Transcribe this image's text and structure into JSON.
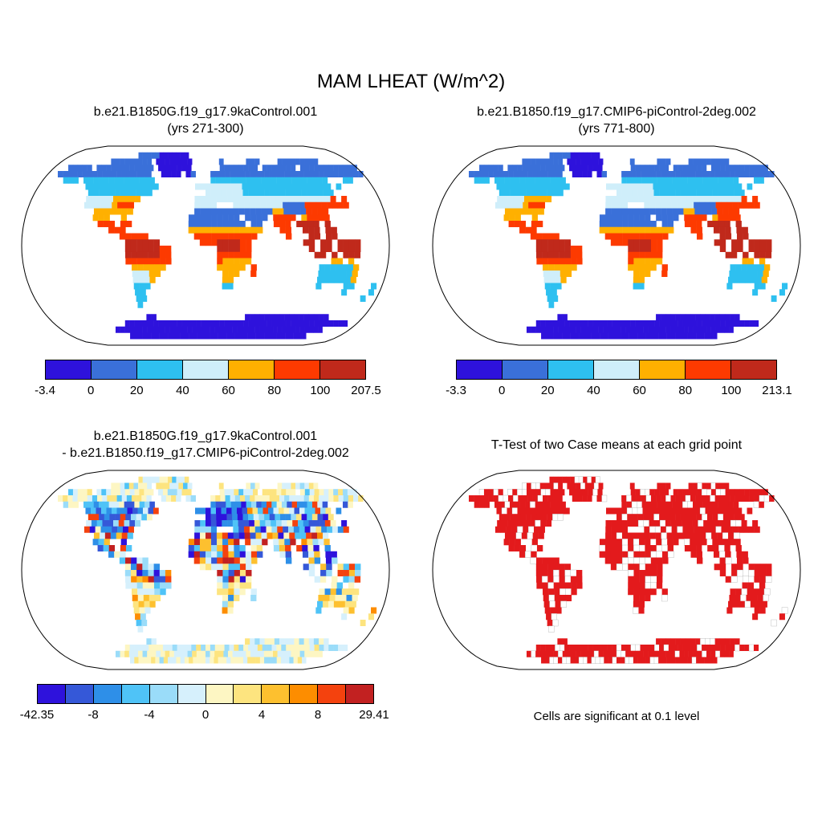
{
  "figure": {
    "title": "MAM LHEAT (W/m^2)",
    "background": "#ffffff"
  },
  "colors": {
    "palette7": [
      "#2e12dc",
      "#3a70d9",
      "#2ec0f0",
      "#cfeefa",
      "#ffb000",
      "#fd3a00",
      "#c0291b"
    ],
    "palette12": [
      "#2e12dc",
      "#3558d8",
      "#2e8fe8",
      "#4fc3f7",
      "#9adcf9",
      "#d6f0fc",
      "#fdf6c3",
      "#fde47f",
      "#fdc02f",
      "#fd8d00",
      "#f4420e",
      "#c22121"
    ]
  },
  "panels": [
    {
      "id": "case1",
      "title_lines": [
        "b.e21.B1850G.f19_g17.9kaControl.001",
        "(yrs 271-300)"
      ],
      "fill_mode": "climatology",
      "colorbar": {
        "colors": [
          "#2e12dc",
          "#3a70d9",
          "#2ec0f0",
          "#cfeefa",
          "#ffb000",
          "#fd3a00",
          "#c0291b"
        ],
        "ticks": [
          {
            "label": "-3.4",
            "pos": 0
          },
          {
            "label": "0",
            "pos": 0.1429
          },
          {
            "label": "20",
            "pos": 0.2857
          },
          {
            "label": "40",
            "pos": 0.4286
          },
          {
            "label": "60",
            "pos": 0.5714
          },
          {
            "label": "80",
            "pos": 0.7143
          },
          {
            "label": "100",
            "pos": 0.8571
          },
          {
            "label": "207.5",
            "pos": 1
          }
        ]
      }
    },
    {
      "id": "case2",
      "title_lines": [
        "b.e21.B1850.f19_g17.CMIP6-piControl-2deg.002",
        "(yrs 771-800)"
      ],
      "fill_mode": "climatology",
      "colorbar": {
        "colors": [
          "#2e12dc",
          "#3a70d9",
          "#2ec0f0",
          "#cfeefa",
          "#ffb000",
          "#fd3a00",
          "#c0291b"
        ],
        "ticks": [
          {
            "label": "-3.3",
            "pos": 0
          },
          {
            "label": "0",
            "pos": 0.1429
          },
          {
            "label": "20",
            "pos": 0.2857
          },
          {
            "label": "40",
            "pos": 0.4286
          },
          {
            "label": "60",
            "pos": 0.5714
          },
          {
            "label": "80",
            "pos": 0.7143
          },
          {
            "label": "100",
            "pos": 0.8571
          },
          {
            "label": "213.1",
            "pos": 1
          }
        ]
      }
    },
    {
      "id": "difference",
      "title_lines": [
        "b.e21.B1850G.f19_g17.9kaControl.001",
        "- b.e21.B1850.f19_g17.CMIP6-piControl-2deg.002"
      ],
      "fill_mode": "diff",
      "colorbar": {
        "colors": [
          "#2e12dc",
          "#3558d8",
          "#2e8fe8",
          "#4fc3f7",
          "#9adcf9",
          "#d6f0fc",
          "#fdf6c3",
          "#fde47f",
          "#fdc02f",
          "#fd8d00",
          "#f4420e",
          "#c22121"
        ],
        "ticks": [
          {
            "label": "-42.35",
            "pos": 0
          },
          {
            "label": "-8",
            "pos": 0.1667
          },
          {
            "label": "-4",
            "pos": 0.3333
          },
          {
            "label": "0",
            "pos": 0.5
          },
          {
            "label": "4",
            "pos": 0.6667
          },
          {
            "label": "8",
            "pos": 0.8333
          },
          {
            "label": "29.41",
            "pos": 1
          }
        ]
      }
    },
    {
      "id": "ttest",
      "title_lines": [
        "T-Test of two Case means at each grid point"
      ],
      "fill_mode": "ttest",
      "caption": "Cells are significant at 0.1 level"
    }
  ],
  "ttest": {
    "significant_color": "#e31a1c",
    "significant_pct": 78
  },
  "map": {
    "grid": {
      "cols": 64,
      "rows": 32
    },
    "land_mask": [
      "................................................................",
      "................############....................................",
      "...........#########.########......#.....###....#########.......",
      "...#####.############.#######......########.#######.############",
      "..###################..####.##...###############################",
      "....###.##############...........#######################...##...",
      ".........##############.......##########################.#......",
      "..........############..........########################........",
      "..........##########..........##########################.#......",
      "..........#########...........####...#####################......",
      "............#######...........########################..........",
      "............###..#...........#########.####.####.#####..........",
      ".............###.##..........##########.##..###.####.#..........",
      "...............###...........#############...##..###.##.........",
      ".................#####........###########.....#...##.##.........",
      "..................######.......#########.........##.##.####.....",
      "..................########........######..........#.##.####.....",
      "..................########........######...........##.#.###.....",
      "..................########........######..............##.#......",
      "...................######.........#####.#...........#######.....",
      "...................#####...........###..#...........#######.....",
      "...................####............##...............#######.....",
      "...................###.............##...............#....##...#.",
      "...................##....................................#....#.",
      "...................##........................................#..",
      "...................#............................................",
      "................................................................",
      "....................##..................#################.......",
      "...............###############################################..",
      "............##############################################......",
      "..............##########################################........",
      "................................................................"
    ]
  },
  "climo_rules": [
    {
      "r": [
        0,
        2
      ],
      "c": [
        0,
        63
      ],
      "k": 1
    },
    {
      "r": [
        3,
        4
      ],
      "c": [
        0,
        63
      ],
      "k": 1
    },
    {
      "r": [
        5,
        7
      ],
      "c": [
        0,
        63
      ],
      "k": 2
    },
    {
      "r": [
        8,
        9
      ],
      "c": [
        0,
        63
      ],
      "k": 3
    },
    {
      "r": [
        10,
        11
      ],
      "c": [
        0,
        63
      ],
      "k": 4
    },
    {
      "r": [
        12,
        18
      ],
      "c": [
        0,
        63
      ],
      "k": 5
    },
    {
      "r": [
        19,
        21
      ],
      "c": [
        0,
        63
      ],
      "k": 4
    },
    {
      "r": [
        22,
        26
      ],
      "c": [
        0,
        63
      ],
      "k": 2
    },
    {
      "r": [
        27,
        31
      ],
      "c": [
        0,
        63
      ],
      "k": 0
    },
    {
      "r": [
        1,
        4
      ],
      "c": [
        21,
        28
      ],
      "k": 0
    },
    {
      "r": [
        6,
        8
      ],
      "c": [
        30,
        38
      ],
      "k": 3
    },
    {
      "r": [
        8,
        9
      ],
      "c": [
        15,
        19
      ],
      "k": 4
    },
    {
      "r": [
        9,
        9
      ],
      "c": [
        16,
        18
      ],
      "k": 5
    },
    {
      "r": [
        8,
        9
      ],
      "c": [
        55,
        57
      ],
      "k": 5
    },
    {
      "r": [
        9,
        11
      ],
      "c": [
        50,
        55
      ],
      "k": 5
    },
    {
      "r": [
        10,
        12
      ],
      "c": [
        29,
        43
      ],
      "k": 1
    },
    {
      "r": [
        9,
        10
      ],
      "c": [
        46,
        49
      ],
      "k": 1
    },
    {
      "r": [
        11,
        13
      ],
      "c": [
        44,
        47
      ],
      "k": 5
    },
    {
      "r": [
        12,
        17
      ],
      "c": [
        48,
        59
      ],
      "k": 6
    },
    {
      "r": [
        12,
        14
      ],
      "c": [
        13,
        18
      ],
      "k": 5
    },
    {
      "r": [
        13,
        13
      ],
      "c": [
        29,
        41
      ],
      "k": 4
    },
    {
      "r": [
        14,
        17
      ],
      "c": [
        33,
        39
      ],
      "k": 5
    },
    {
      "r": [
        15,
        16
      ],
      "c": [
        34,
        37
      ],
      "k": 6
    },
    {
      "r": [
        15,
        17
      ],
      "c": [
        18,
        23
      ],
      "k": 6
    },
    {
      "r": [
        18,
        18
      ],
      "c": [
        18,
        25
      ],
      "k": 5
    },
    {
      "r": [
        18,
        21
      ],
      "c": [
        35,
        39
      ],
      "k": 4
    },
    {
      "r": [
        19,
        20
      ],
      "c": [
        40,
        41
      ],
      "k": 5
    },
    {
      "r": [
        19,
        22
      ],
      "c": [
        52,
        59
      ],
      "k": 2
    },
    {
      "r": [
        18,
        18
      ],
      "c": [
        54,
        57
      ],
      "k": 4
    },
    {
      "r": [
        19,
        21
      ],
      "c": [
        58,
        58
      ],
      "k": 4
    },
    {
      "r": [
        20,
        22
      ],
      "c": [
        19,
        21
      ],
      "k": 3
    },
    {
      "r": [
        22,
        25
      ],
      "c": [
        18,
        21
      ],
      "k": 2
    }
  ],
  "diff_zones": [
    {
      "r": [
        0,
        31
      ],
      "w": [
        5,
        6,
        6,
        7,
        5,
        4,
        6,
        7
      ]
    },
    {
      "r": [
        0,
        4
      ],
      "w": [
        4,
        5,
        6,
        7,
        6,
        5,
        7,
        6,
        3
      ]
    },
    {
      "r": [
        5,
        9
      ],
      "w": [
        0,
        1,
        2,
        3,
        4,
        2,
        6,
        7,
        1,
        3,
        5,
        10
      ]
    },
    {
      "r": [
        5,
        8
      ],
      "c": [
        30,
        40
      ],
      "w": [
        0,
        1,
        1,
        2,
        0,
        3,
        2,
        9
      ]
    },
    {
      "r": [
        10,
        17
      ],
      "w": [
        0,
        2,
        3,
        7,
        8,
        9,
        10,
        11,
        1,
        6,
        4,
        5
      ]
    },
    {
      "r": [
        18,
        25
      ],
      "w": [
        3,
        4,
        5,
        6,
        7,
        8,
        2,
        7,
        6,
        9
      ]
    },
    {
      "r": [
        26,
        31
      ],
      "w": [
        5,
        6,
        4,
        6,
        7,
        5
      ]
    }
  ],
  "chart_data": [
    {
      "type": "heatmap",
      "title": "b.e21.B1850G.f19_g17.9kaControl.001 (yrs 271-300)",
      "variable": "MAM LHEAT (W/m^2)",
      "projection": "robinson-world-map",
      "colorbar_levels": [
        0,
        20,
        40,
        60,
        80,
        100
      ],
      "data_min": -3.4,
      "data_max": 207.5,
      "palette": [
        "#2e12dc",
        "#3a70d9",
        "#2ec0f0",
        "#cfeefa",
        "#ffb000",
        "#fd3a00",
        "#c0291b"
      ],
      "legend_position": "bottom",
      "notes": "land-only shading; high values in tropics, low values over Sahara/Arabia and high latitudes"
    },
    {
      "type": "heatmap",
      "title": "b.e21.B1850.f19_g17.CMIP6-piControl-2deg.002 (yrs 771-800)",
      "variable": "MAM LHEAT (W/m^2)",
      "projection": "robinson-world-map",
      "colorbar_levels": [
        0,
        20,
        40,
        60,
        80,
        100
      ],
      "data_min": -3.3,
      "data_max": 213.1,
      "palette": [
        "#2e12dc",
        "#3a70d9",
        "#2ec0f0",
        "#cfeefa",
        "#ffb000",
        "#fd3a00",
        "#c0291b"
      ],
      "legend_position": "bottom",
      "notes": "land-only shading; spatial pattern nearly identical to panel 1"
    },
    {
      "type": "heatmap",
      "title": "b.e21.B1850G.f19_g17.9kaControl.001 - b.e21.B1850.f19_g17.CMIP6-piControl-2deg.002",
      "variable": "MAM LHEAT difference (W/m^2)",
      "projection": "robinson-world-map",
      "colorbar_levels": [
        -8,
        -4,
        0,
        4,
        8
      ],
      "data_min": -42.35,
      "data_max": 29.41,
      "palette": [
        "#2e12dc",
        "#3558d8",
        "#2e8fe8",
        "#4fc3f7",
        "#9adcf9",
        "#d6f0fc",
        "#fdf6c3",
        "#fde47f",
        "#fdc02f",
        "#fd8d00",
        "#f4420e",
        "#c22121"
      ],
      "legend_position": "bottom",
      "notes": "noisy mix of positive and negative anomalies over land"
    },
    {
      "type": "heatmap",
      "title": "T-Test of two Case means at each grid point",
      "projection": "robinson-world-map",
      "significant_color": "#e31a1c",
      "annotation": "Cells are significant at 0.1 level",
      "notes": "majority of land grid cells shaded red (significant)"
    }
  ]
}
